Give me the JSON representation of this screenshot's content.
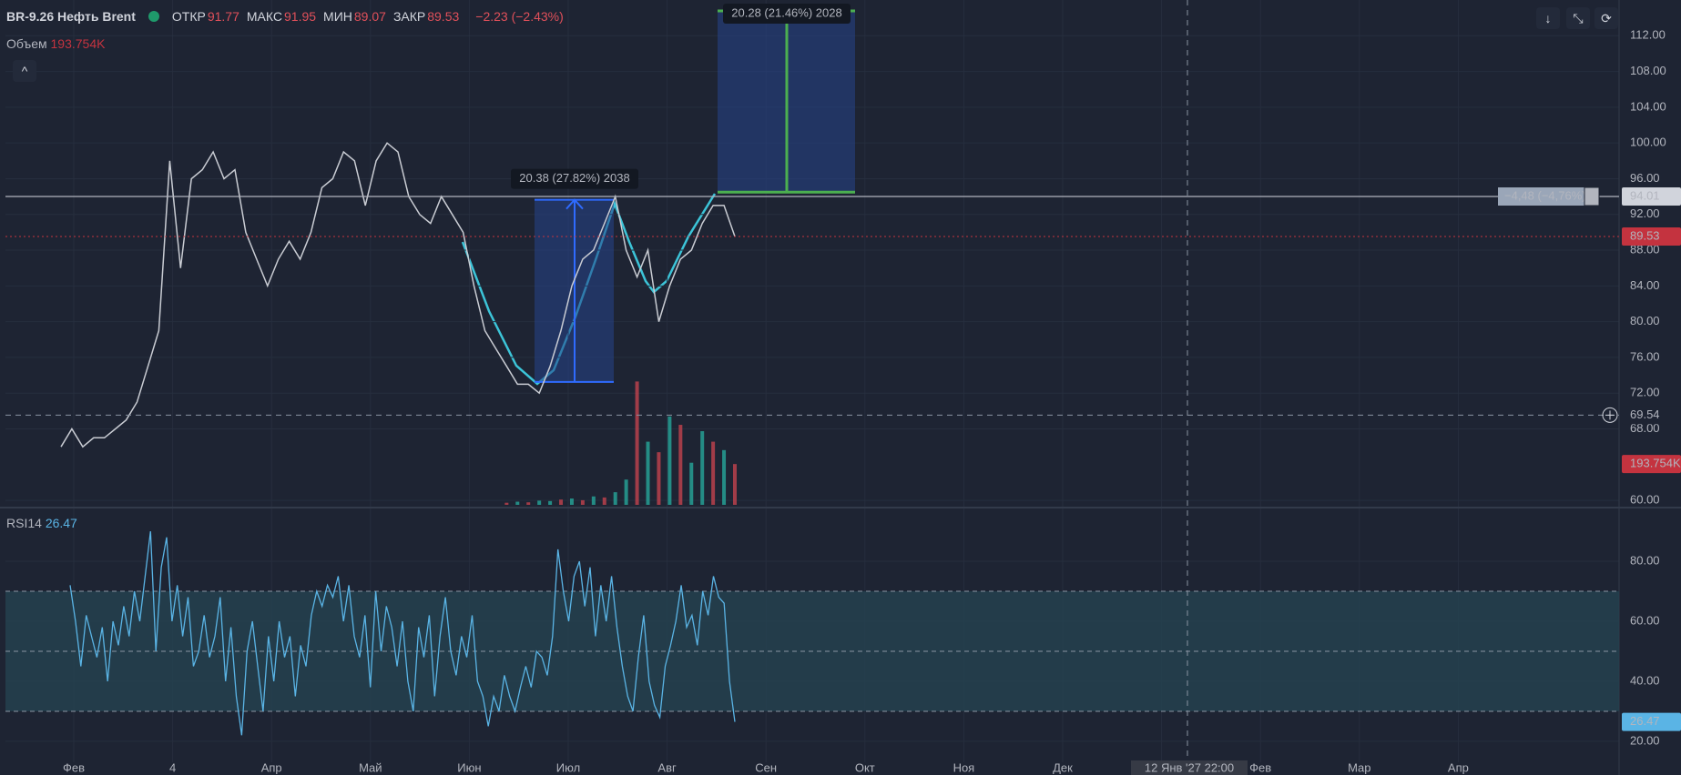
{
  "header": {
    "symbol": "BR-9.26 Нефть Brent",
    "fields": [
      {
        "label": "ОТКР",
        "value": 91.77
      },
      {
        "label": "МАКС",
        "value": 91.95
      },
      {
        "label": "МИН",
        "value": 89.07
      },
      {
        "label": "ЗАКР",
        "value": 89.53
      }
    ],
    "change": "−2.23 (−2.43%)",
    "volume_label": "Объем",
    "rsi_label": "RSI14"
  },
  "chart_data": [
    {
      "type": "line",
      "color": "#c9ccd3",
      "values": [
        66,
        68,
        66,
        67,
        67,
        68,
        69,
        71,
        75,
        79,
        98,
        86,
        96,
        97,
        99,
        96,
        97,
        90,
        87,
        84,
        87,
        89,
        87,
        90,
        95,
        96,
        99,
        98,
        93,
        98,
        100,
        99,
        94,
        92,
        91,
        94,
        92,
        90,
        84,
        79,
        77,
        75,
        73,
        73,
        72,
        75,
        79,
        84,
        87,
        88,
        91,
        94,
        88,
        85,
        88,
        80,
        84,
        87,
        88,
        91,
        93,
        93,
        89.53
      ],
      "ylim": [
        59.5,
        116
      ],
      "yticks": [
        {
          "value": 60,
          "label": "60.00"
        },
        {
          "value": 68,
          "label": "68.00"
        },
        {
          "value": 72,
          "label": "72.00"
        },
        {
          "value": 76,
          "label": "76.00"
        },
        {
          "value": 80,
          "label": "80.00"
        },
        {
          "value": 84,
          "label": "84.00"
        },
        {
          "value": 88,
          "label": "88.00"
        },
        {
          "value": 92,
          "label": "92.00"
        },
        {
          "value": 96,
          "label": "96.00"
        },
        {
          "value": 100,
          "label": "100.00"
        },
        {
          "value": 104,
          "label": "104.00"
        },
        {
          "value": 108,
          "label": "108.00"
        },
        {
          "value": 112,
          "label": "112.00"
        }
      ],
      "grid": true,
      "levels": [
        {
          "value": 94.01,
          "color": "#b2b5be"
        },
        {
          "value": 89.53,
          "color": "#c4333f"
        },
        {
          "value": 69.54,
          "color": "#8a93a2"
        }
      ],
      "measures": [
        {
          "from": 73.26,
          "to": 93.64,
          "label": "20.38 (27.82%) 2038"
        },
        {
          "from": 94.5,
          "to": 114.78,
          "label": "20.28 (21.46%) 2028"
        },
        {
          "from": 94.01,
          "to": 89.53,
          "label": "−4,48 (−4,76%)",
          "count": 2
        }
      ]
    },
    {
      "type": "bar",
      "ylim": [
        0,
        700
      ],
      "values": [
        10,
        15,
        12,
        20,
        18,
        25,
        30,
        22,
        40,
        35,
        60,
        120,
        586,
        300,
        250,
        420,
        380,
        200,
        350,
        300,
        260,
        193.754
      ],
      "colors": [
        "#c2424d",
        "#26a69a",
        "#c2424d",
        "#26a69a",
        "#26a69a",
        "#c2424d",
        "#26a69a",
        "#c2424d",
        "#26a69a",
        "#c2424d",
        "#26a69a",
        "#26a69a",
        "#c2424d",
        "#26a69a",
        "#c2424d",
        "#26a69a",
        "#c2424d",
        "#26a69a",
        "#26a69a",
        "#c2424d",
        "#26a69a",
        "#c2424d"
      ],
      "last_label": "193.754K"
    },
    {
      "type": "line",
      "color": "#5ab4e5",
      "values": [
        72,
        60,
        45,
        62,
        55,
        48,
        58,
        40,
        60,
        52,
        65,
        55,
        70,
        60,
        75,
        90,
        50,
        78,
        88,
        60,
        72,
        55,
        68,
        45,
        50,
        62,
        48,
        55,
        68,
        40,
        58,
        35,
        22,
        50,
        60,
        45,
        30,
        55,
        40,
        60,
        48,
        55,
        35,
        52,
        45,
        62,
        70,
        65,
        72,
        68,
        75,
        60,
        72,
        55,
        48,
        62,
        38,
        70,
        50,
        65,
        58,
        45,
        60,
        40,
        30,
        58,
        48,
        62,
        35,
        55,
        68,
        50,
        42,
        55,
        48,
        62,
        40,
        35,
        25,
        35,
        30,
        42,
        35,
        30,
        38,
        45,
        38,
        50,
        48,
        42,
        55,
        84,
        70,
        60,
        75,
        80,
        65,
        78,
        55,
        72,
        60,
        75,
        58,
        45,
        35,
        30,
        48,
        62,
        40,
        32,
        28,
        45,
        52,
        60,
        72,
        58,
        62,
        52,
        70,
        62,
        75,
        68,
        66,
        40,
        26.47
      ],
      "ylim": [
        13,
        97
      ],
      "yticks": [
        {
          "value": 20,
          "label": "20.00"
        },
        {
          "value": 40,
          "label": "40.00"
        },
        {
          "value": 60,
          "label": "60.00"
        },
        {
          "value": 80,
          "label": "80.00"
        }
      ],
      "levels": [
        30,
        50,
        70
      ]
    }
  ],
  "time_axis": {
    "labels": [
      "Фев",
      "4",
      "Апр",
      "Май",
      "Июн",
      "Июл",
      "Авг",
      "Сен",
      "Окт",
      "Ноя",
      "Дек",
      null,
      "Фев",
      "Мар",
      "Апр"
    ],
    "crosshair_label": "12 Янв '27  22:00"
  }
}
